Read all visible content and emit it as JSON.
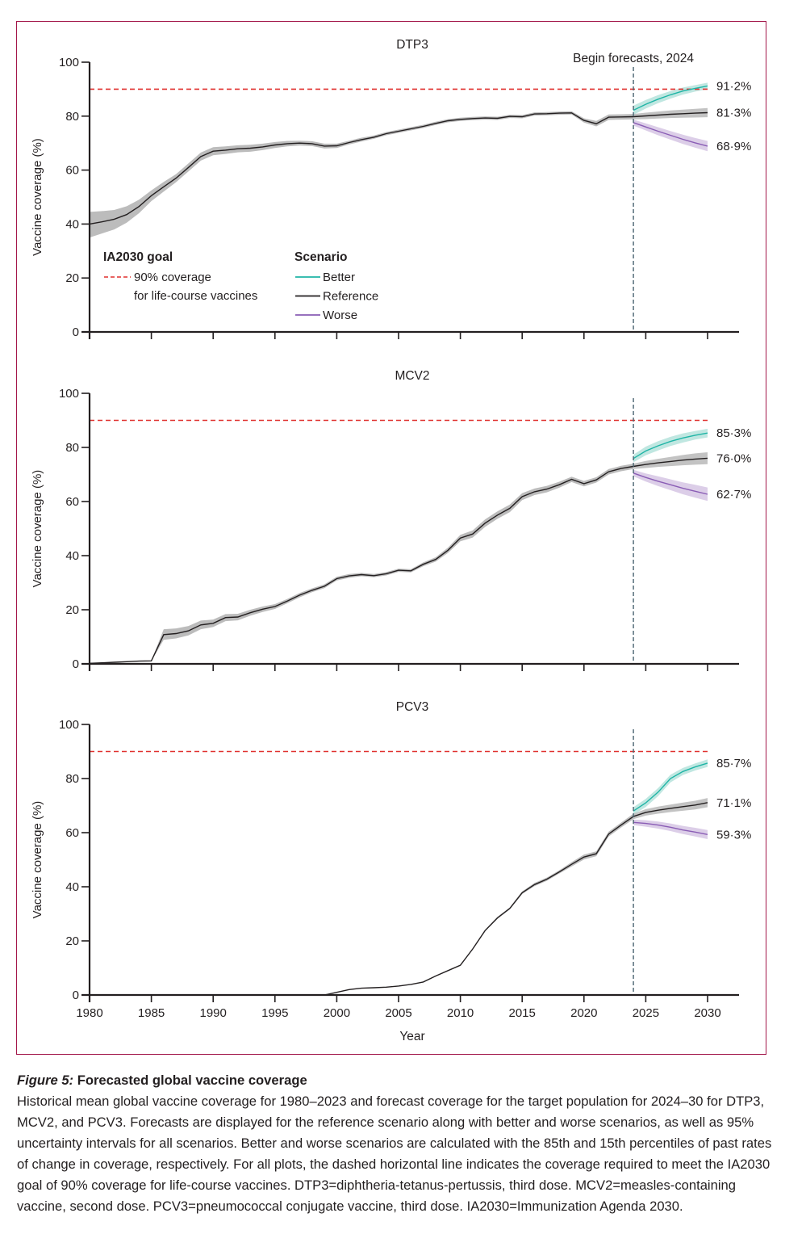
{
  "chart_data": [
    {
      "type": "line",
      "title": "DTP3",
      "xlabel": "",
      "ylabel": "Vaccine coverage (%)",
      "xlim": [
        1980,
        2030
      ],
      "ylim": [
        0,
        100
      ],
      "yticks": [
        "0",
        "20",
        "40",
        "60",
        "80",
        "100"
      ],
      "xticks": [
        1980,
        1985,
        1990,
        1995,
        2000,
        2005,
        2010,
        2015,
        2020,
        2025,
        2030
      ],
      "show_xtick_labels": false,
      "goal_line": 90,
      "forecast_start": 2024,
      "forecast_annotation": "Begin forecasts, 2024",
      "historical": {
        "x": [
          1980,
          1981,
          1982,
          1983,
          1984,
          1985,
          1986,
          1987,
          1988,
          1989,
          1990,
          1991,
          1992,
          1993,
          1994,
          1995,
          1996,
          1997,
          1998,
          1999,
          2000,
          2001,
          2002,
          2003,
          2004,
          2005,
          2006,
          2007,
          2008,
          2009,
          2010,
          2011,
          2012,
          2013,
          2014,
          2015,
          2016,
          2017,
          2018,
          2019,
          2020,
          2021,
          2022,
          2023,
          2024
        ],
        "y": [
          40,
          40.8,
          41.8,
          43.5,
          46.5,
          50.5,
          53.8,
          57,
          61,
          65,
          67,
          67.4,
          67.9,
          68.1,
          68.6,
          69.3,
          69.8,
          70,
          69.8,
          68.9,
          69,
          70.2,
          71.3,
          72.2,
          73.5,
          74.4,
          75.3,
          76.2,
          77.3,
          78.3,
          78.8,
          79.1,
          79.3,
          79.2,
          79.9,
          79.8,
          80.8,
          80.9,
          81.1,
          81.2,
          78.4,
          77.2,
          79.6,
          79.7,
          79.8
        ],
        "lower": [
          35,
          36.5,
          38,
          40.5,
          44,
          48.5,
          52,
          55.5,
          59.5,
          63.5,
          65.5,
          66,
          66.6,
          66.8,
          67.4,
          68.2,
          68.8,
          69.1,
          68.9,
          68,
          68.2,
          69.5,
          70.6,
          71.6,
          72.9,
          73.8,
          74.7,
          75.6,
          76.7,
          77.7,
          78.2,
          78.5,
          78.7,
          78.6,
          79.3,
          79.2,
          80.2,
          80.3,
          80.5,
          80.6,
          77.6,
          76.2,
          78.6,
          78.7,
          78.8
        ],
        "upper": [
          44.5,
          44.8,
          45.2,
          46.6,
          49,
          52.5,
          55.6,
          58.5,
          62.5,
          66.5,
          68.5,
          68.8,
          69.2,
          69.4,
          69.8,
          70.4,
          70.8,
          70.9,
          70.7,
          69.8,
          69.8,
          70.9,
          72,
          72.8,
          74.1,
          75,
          75.9,
          76.8,
          77.9,
          78.9,
          79.4,
          79.7,
          79.9,
          79.8,
          80.5,
          80.4,
          81.4,
          81.5,
          81.7,
          81.8,
          79.2,
          78.2,
          80.6,
          80.7,
          80.8
        ]
      },
      "forecast": {
        "x": [
          2024,
          2025,
          2026,
          2027,
          2028,
          2029,
          2030
        ],
        "series": [
          {
            "name": "Better",
            "y": [
              82.2,
              84.4,
              86.3,
              87.9,
              89.3,
              90.3,
              91.2
            ],
            "lower": [
              80.5,
              82.8,
              84.8,
              86.5,
              88,
              89.1,
              90.0
            ],
            "upper": [
              83.9,
              86,
              87.8,
              89.3,
              90.6,
              91.5,
              92.4
            ]
          },
          {
            "name": "Reference",
            "y": [
              79.8,
              80.1,
              80.4,
              80.7,
              80.9,
              81.1,
              81.3
            ],
            "lower": [
              78.8,
              78.9,
              79.1,
              79.3,
              79.4,
              79.5,
              79.6
            ],
            "upper": [
              80.8,
              81.3,
              81.7,
              82.1,
              82.4,
              82.7,
              83.0
            ]
          },
          {
            "name": "Worse",
            "y": [
              77.6,
              76.0,
              74.4,
              72.9,
              71.4,
              70.1,
              68.9
            ],
            "lower": [
              76.5,
              74.7,
              72.9,
              71.3,
              69.7,
              68.3,
              67.0
            ],
            "upper": [
              78.7,
              77.3,
              75.9,
              74.5,
              73.1,
              71.9,
              70.8
            ]
          }
        ]
      },
      "end_labels": [
        "91·2%",
        "81·3%",
        "68·9%"
      ]
    },
    {
      "type": "line",
      "title": "MCV2",
      "xlabel": "",
      "ylabel": "Vaccine coverage (%)",
      "xlim": [
        1980,
        2030
      ],
      "ylim": [
        0,
        100
      ],
      "yticks": [
        "0",
        "20",
        "40",
        "60",
        "80",
        "100"
      ],
      "xticks": [
        1980,
        1985,
        1990,
        1995,
        2000,
        2005,
        2010,
        2015,
        2020,
        2025,
        2030
      ],
      "show_xtick_labels": false,
      "goal_line": 90,
      "forecast_start": 2024,
      "historical": {
        "x": [
          1980,
          1981,
          1982,
          1983,
          1984,
          1985,
          1986,
          1987,
          1988,
          1989,
          1990,
          1991,
          1992,
          1993,
          1994,
          1995,
          1996,
          1997,
          1998,
          1999,
          2000,
          2001,
          2002,
          2003,
          2004,
          2005,
          2006,
          2007,
          2008,
          2009,
          2010,
          2011,
          2012,
          2013,
          2014,
          2015,
          2016,
          2017,
          2018,
          2019,
          2020,
          2021,
          2022,
          2023,
          2024
        ],
        "y": [
          0.2,
          0.4,
          0.6,
          0.8,
          1,
          1.1,
          10.8,
          11.2,
          12.2,
          14.4,
          15,
          17.1,
          17.3,
          18.9,
          20.2,
          21.2,
          23.2,
          25.4,
          27.2,
          28.7,
          31.5,
          32.5,
          33,
          32.6,
          33.3,
          34.6,
          34.4,
          36.8,
          38.6,
          42,
          46.5,
          48,
          52,
          55,
          57.5,
          61.8,
          63.6,
          64.6,
          66.2,
          68.2,
          66.6,
          68,
          71,
          72.2,
          73
        ],
        "lower": [
          0.1,
          0.3,
          0.5,
          0.7,
          0.9,
          1,
          8.9,
          9.4,
          10.5,
          12.8,
          13.6,
          15.8,
          16.1,
          17.8,
          19.2,
          20.3,
          22.4,
          24.6,
          26.5,
          28,
          30.8,
          31.8,
          32.4,
          32,
          32.7,
          34,
          33.8,
          36.1,
          37.8,
          41,
          45.3,
          46.7,
          50.6,
          53.6,
          56.1,
          60.5,
          62.4,
          63.4,
          65.1,
          67.2,
          65.6,
          67,
          70,
          71.2,
          72
        ],
        "upper": [
          0.3,
          0.5,
          0.7,
          0.9,
          1.1,
          1.2,
          12.8,
          13.1,
          14,
          16,
          16.4,
          18.4,
          18.5,
          20,
          21.2,
          22.1,
          24,
          26.2,
          27.9,
          29.4,
          32.2,
          33.2,
          33.6,
          33.2,
          33.9,
          35.2,
          35,
          37.5,
          39.4,
          43,
          47.7,
          49.3,
          53.4,
          56.4,
          58.9,
          63.1,
          64.8,
          65.8,
          67.3,
          69.2,
          67.6,
          69,
          72,
          73.2,
          74
        ]
      },
      "forecast": {
        "x": [
          2024,
          2025,
          2026,
          2027,
          2028,
          2029,
          2030
        ],
        "series": [
          {
            "name": "Better",
            "y": [
              75.9,
              78.7,
              80.6,
              82.2,
              83.5,
              84.5,
              85.3
            ],
            "lower": [
              74.5,
              77.1,
              78.9,
              80.5,
              81.8,
              82.9,
              83.7
            ],
            "upper": [
              77.3,
              80.3,
              82.3,
              83.9,
              85.2,
              86.1,
              86.9
            ]
          },
          {
            "name": "Reference",
            "y": [
              73,
              73.7,
              74.3,
              74.8,
              75.3,
              75.7,
              76.0
            ],
            "lower": [
              72,
              72.4,
              72.8,
              73.1,
              73.4,
              73.6,
              73.8
            ],
            "upper": [
              74,
              75,
              75.8,
              76.5,
              77.2,
              77.8,
              78.2
            ]
          },
          {
            "name": "Worse",
            "y": [
              70.5,
              68.9,
              67.5,
              66.2,
              64.9,
              63.8,
              62.7
            ],
            "lower": [
              69.3,
              67.4,
              65.7,
              64.2,
              62.7,
              61.4,
              60.2
            ],
            "upper": [
              71.7,
              70.4,
              69.3,
              68.2,
              67.1,
              66.2,
              65.2
            ]
          }
        ]
      },
      "end_labels": [
        "85·3%",
        "76·0%",
        "62·7%"
      ]
    },
    {
      "type": "line",
      "title": "PCV3",
      "xlabel": "Year",
      "ylabel": "Vaccine coverage (%)",
      "xlim": [
        1980,
        2030
      ],
      "ylim": [
        0,
        100
      ],
      "yticks": [
        "0",
        "20",
        "40",
        "60",
        "80",
        "100"
      ],
      "xticks": [
        1980,
        1985,
        1990,
        1995,
        2000,
        2005,
        2010,
        2015,
        2020,
        2025,
        2030
      ],
      "show_xtick_labels": true,
      "goal_line": 90,
      "forecast_start": 2024,
      "historical": {
        "x": [
          1999,
          2000,
          2001,
          2002,
          2003,
          2004,
          2005,
          2006,
          2007,
          2008,
          2009,
          2010,
          2011,
          2012,
          2013,
          2014,
          2015,
          2016,
          2017,
          2018,
          2019,
          2020,
          2021,
          2022,
          2023,
          2024
        ],
        "y": [
          0,
          1,
          2,
          2.5,
          2.7,
          2.9,
          3.3,
          3.9,
          4.8,
          7,
          9,
          11,
          17,
          23.8,
          28.5,
          32,
          37.8,
          40.8,
          42.8,
          45.5,
          48.3,
          51,
          52.2,
          59.5,
          62.8,
          66
        ],
        "lower": [
          0,
          0.9,
          1.9,
          2.4,
          2.6,
          2.8,
          3.2,
          3.8,
          4.7,
          6.9,
          8.9,
          10.9,
          16.8,
          23.5,
          28.1,
          31.6,
          37.3,
          40.2,
          42.2,
          44.9,
          47.5,
          50.1,
          51.3,
          58.6,
          61.9,
          65.0
        ],
        "upper": [
          0,
          1.1,
          2.1,
          2.6,
          2.8,
          3,
          3.4,
          4,
          4.9,
          7.1,
          9.1,
          11.1,
          17.2,
          24.1,
          28.9,
          32.4,
          38.3,
          41.4,
          43.4,
          46.1,
          49.1,
          51.9,
          53.1,
          60.4,
          63.7,
          67.0
        ]
      },
      "forecast": {
        "x": [
          2024,
          2025,
          2026,
          2027,
          2028,
          2029,
          2030
        ],
        "series": [
          {
            "name": "Better",
            "y": [
              68,
              71,
              75,
              80,
              82.6,
              84.3,
              85.7
            ],
            "lower": [
              66.6,
              69.5,
              73.5,
              78.6,
              81.3,
              83,
              84.3
            ],
            "upper": [
              69.4,
              72.5,
              76.5,
              81.4,
              83.9,
              85.6,
              87.1
            ]
          },
          {
            "name": "Reference",
            "y": [
              66,
              67.5,
              68.3,
              69,
              69.6,
              70.2,
              71.1
            ],
            "lower": [
              65,
              66.3,
              67,
              67.6,
              68.1,
              68.6,
              69.4
            ],
            "upper": [
              67,
              68.7,
              69.6,
              70.4,
              71.1,
              71.8,
              72.8
            ]
          },
          {
            "name": "Worse",
            "y": [
              63.8,
              63.4,
              62.8,
              62,
              61,
              60.2,
              59.3
            ],
            "lower": [
              62.8,
              62.2,
              61.5,
              60.6,
              59.5,
              58.6,
              57.6
            ],
            "upper": [
              64.8,
              64.6,
              64.1,
              63.4,
              62.5,
              61.8,
              61.0
            ]
          }
        ]
      },
      "end_labels": [
        "85·7%",
        "71·1%",
        "59·3%"
      ]
    }
  ],
  "legend": {
    "goal_title": "IA2030 goal",
    "goal_line1": "90% coverage",
    "goal_line2": "for life-course vaccines",
    "scenario_title": "Scenario",
    "items": [
      {
        "label": "Better",
        "color": "#1fb5a6"
      },
      {
        "label": "Reference",
        "color": "#231f20"
      },
      {
        "label": "Worse",
        "color": "#8a5db5"
      }
    ]
  },
  "colors": {
    "better": "#1fb5a6",
    "better_band": "#b9e4de",
    "reference": "#231f20",
    "reference_band": "#bcbcbc",
    "worse": "#8a5db5",
    "worse_band": "#d8c9e6",
    "goal_line": "#e0312f",
    "forecast_line": "#4a6470",
    "frame": "#a3174a"
  },
  "caption": {
    "figure_label": "Figure 5:",
    "title": "Forecasted global vaccine coverage",
    "body": "Historical mean global vaccine coverage for 1980–2023 and forecast coverage for the target population for 2024–30 for DTP3, MCV2, and PCV3. Forecasts are displayed for the reference scenario along with better and worse scenarios, as well as 95% uncertainty intervals for all scenarios. Better and worse scenarios are calculated with the 85th and 15th percentiles of past rates of change in coverage, respectively. For all plots, the dashed horizontal line indicates the coverage required to meet the IA2030 goal of 90% coverage for life-course vaccines. DTP3=diphtheria-tetanus-pertussis, third dose. MCV2=measles-containing vaccine, second dose. PCV3=pneumococcal conjugate vaccine, third dose. IA2030=Immunization Agenda 2030."
  }
}
